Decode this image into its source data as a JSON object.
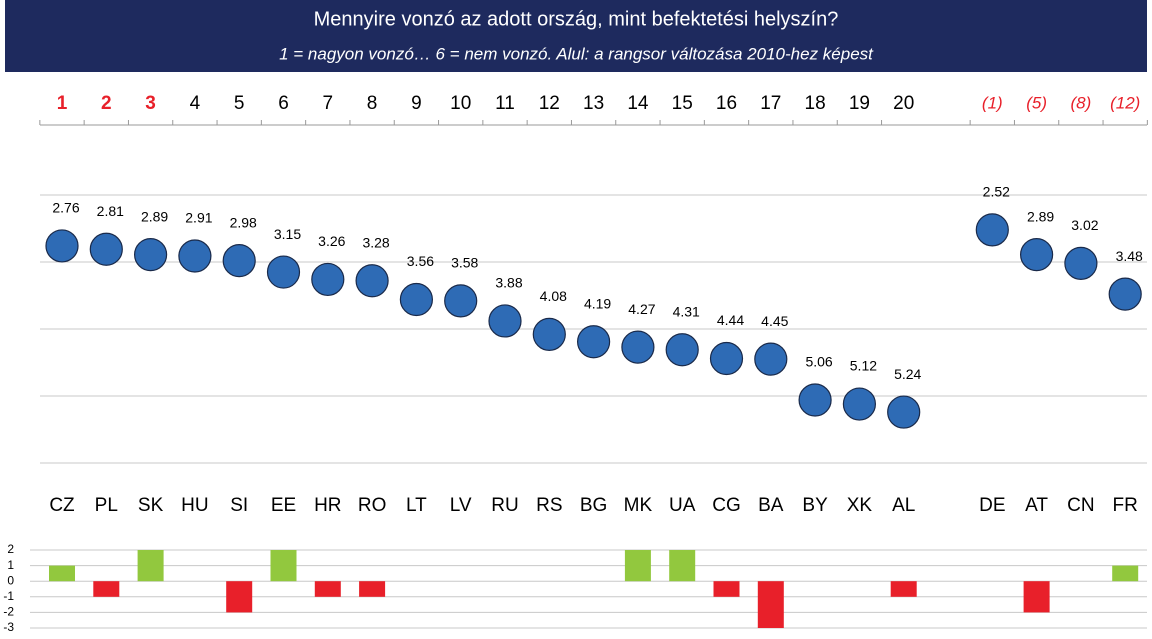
{
  "chart_data": {
    "type": "dot",
    "title": "Mennyire vonzó az adott ország, mint befektetési helyszín?",
    "subtitle": "1 = nagyon vonzó… 6 = nem vonzó. Alul: a rangsor változása 2010-hez képest",
    "categories": [
      "CZ",
      "PL",
      "SK",
      "HU",
      "SI",
      "EE",
      "HR",
      "RO",
      "LT",
      "LV",
      "RU",
      "RS",
      "BG",
      "MK",
      "UA",
      "CG",
      "BA",
      "BY",
      "XK",
      "AL",
      "DE",
      "AT",
      "CN",
      "FR"
    ],
    "ranks": [
      1,
      2,
      3,
      4,
      5,
      6,
      7,
      8,
      9,
      10,
      11,
      12,
      13,
      14,
      15,
      16,
      17,
      18,
      19,
      20,
      "(1)",
      "(5)",
      "(8)",
      "(12)"
    ],
    "highlight_top": 3,
    "highlight_color": "#e8202a",
    "values": [
      2.76,
      2.81,
      2.89,
      2.91,
      2.98,
      3.15,
      3.26,
      3.28,
      3.56,
      3.58,
      3.88,
      4.08,
      4.19,
      4.27,
      4.31,
      4.44,
      4.45,
      5.06,
      5.12,
      5.24,
      2.52,
      2.89,
      3.02,
      3.48
    ],
    "color": "#2e6bb5",
    "ylim": [
      2,
      6
    ],
    "y_inverted": true,
    "yticks": [
      2,
      3,
      4,
      5,
      6
    ],
    "show_ytick_labels": false,
    "grid": true,
    "change": {
      "type": "bar",
      "values": [
        1,
        -1,
        2,
        0,
        -2,
        2,
        -1,
        -1,
        0,
        0,
        0,
        0,
        0,
        2,
        2,
        -1,
        -3,
        0,
        0,
        -1,
        0,
        -2,
        0,
        1
      ],
      "positive_color": "#92c83e",
      "negative_color": "#e8202a",
      "ylim": [
        -3,
        2
      ],
      "yticks": [
        -3,
        -2,
        -1,
        0,
        1,
        2
      ],
      "grid": true
    }
  }
}
